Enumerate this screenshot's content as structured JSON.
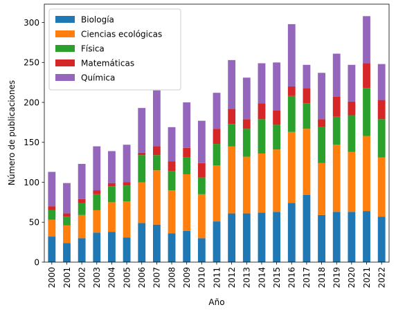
{
  "chart_data": {
    "type": "bar",
    "stacked": true,
    "title": "",
    "xlabel": "Año",
    "ylabel": "Número de publicaciones",
    "ylim": [
      0,
      323
    ],
    "yticks": [
      0,
      50,
      100,
      150,
      200,
      250,
      300
    ],
    "legend_position": "top-left",
    "grid": false,
    "categories": [
      "2000",
      "2001",
      "2002",
      "2003",
      "2004",
      "2005",
      "2006",
      "2007",
      "2008",
      "2009",
      "2010",
      "2011",
      "2012",
      "2013",
      "2014",
      "2015",
      "2016",
      "2017",
      "2018",
      "2019",
      "2020",
      "2021",
      "2022"
    ],
    "series": [
      {
        "name": "Biología",
        "color": "#1f77b4",
        "values": [
          32,
          24,
          30,
          37,
          38,
          31,
          49,
          47,
          36,
          39,
          30,
          51,
          61,
          61,
          62,
          63,
          74,
          84,
          59,
          63,
          63,
          64,
          57
        ]
      },
      {
        "name": "Ciencias ecológicas",
        "color": "#ff7f0e",
        "values": [
          21,
          22,
          29,
          28,
          37,
          45,
          51,
          68,
          54,
          71,
          55,
          70,
          84,
          71,
          74,
          78,
          89,
          83,
          65,
          84,
          75,
          94,
          74
        ]
      },
      {
        "name": "Física",
        "color": "#2ca02c",
        "values": [
          12,
          11,
          15,
          20,
          20,
          20,
          34,
          19,
          24,
          21,
          21,
          27,
          28,
          35,
          43,
          31,
          45,
          32,
          45,
          35,
          46,
          60,
          48
        ]
      },
      {
        "name": "Matemáticas",
        "color": "#d62728",
        "values": [
          5,
          4,
          5,
          5,
          4,
          4,
          3,
          11,
          12,
          12,
          18,
          19,
          19,
          12,
          20,
          18,
          12,
          19,
          10,
          25,
          17,
          31,
          24
        ]
      },
      {
        "name": "Química",
        "color": "#9467bd",
        "values": [
          43,
          38,
          44,
          55,
          40,
          47,
          56,
          70,
          43,
          57,
          53,
          45,
          61,
          52,
          50,
          60,
          78,
          29,
          58,
          54,
          46,
          59,
          45
        ]
      }
    ]
  }
}
